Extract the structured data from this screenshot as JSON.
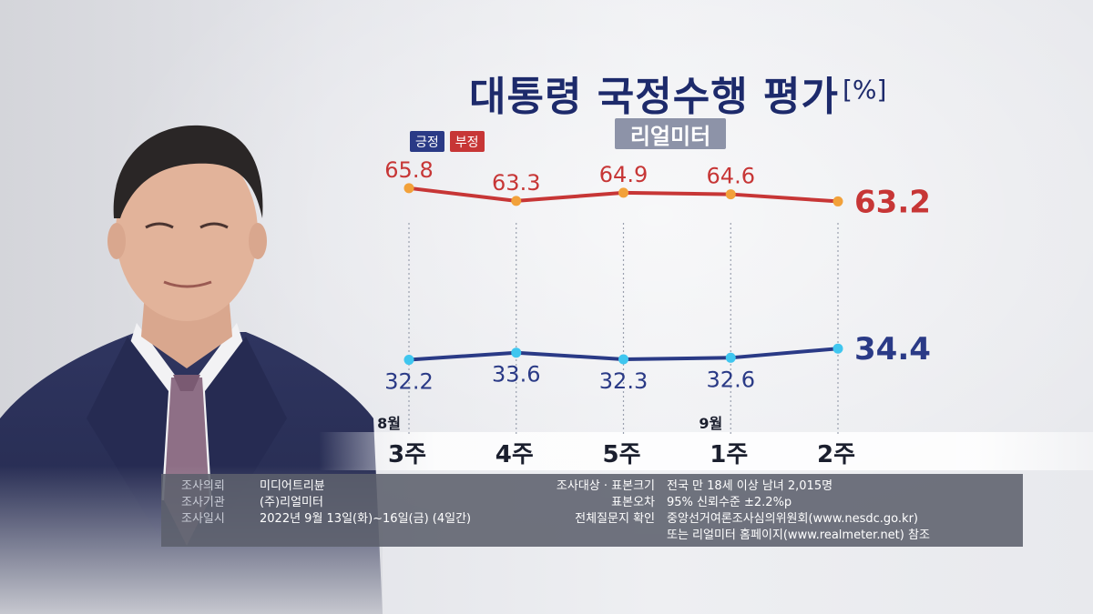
{
  "title": "대통령 국정수행 평가",
  "unit": "[%]",
  "source": "리얼미터",
  "legend": {
    "positive": "긍정",
    "negative": "부정"
  },
  "colors": {
    "positive": "#2a3a86",
    "negative": "#c73636",
    "positive_marker": "#3fc6ef",
    "negative_marker": "#f2a13a"
  },
  "chart_data": {
    "type": "line",
    "categories": [
      "3주",
      "4주",
      "5주",
      "1주",
      "2주"
    ],
    "month_labels": [
      "8월",
      "",
      "",
      "9월",
      ""
    ],
    "series": [
      {
        "name": "부정",
        "values": [
          65.8,
          63.3,
          64.9,
          64.6,
          63.2
        ]
      },
      {
        "name": "긍정",
        "values": [
          32.2,
          33.6,
          32.3,
          32.6,
          34.4
        ]
      }
    ],
    "title": "대통령 국정수행 평가",
    "ylim": [
      25,
      72
    ],
    "grid": "vertical-dotted",
    "legend_placement": "top-left"
  },
  "info": {
    "left": [
      {
        "key": "조사의뢰",
        "value": "미디어트리뷴"
      },
      {
        "key": "조사기관",
        "value": "(주)리얼미터"
      },
      {
        "key": "조사일시",
        "value": "2022년 9월 13일(화)~16일(금) (4일간)"
      }
    ],
    "right": [
      {
        "key": "조사대상 · 표본크기",
        "value": "전국 만 18세 이상 남녀 2,015명"
      },
      {
        "key": "표본오차",
        "value": "95% 신뢰수준 ±2.2%p"
      },
      {
        "key": "전체질문지 확인",
        "value": "중앙선거여론조사심의위원회(www.nesdc.go.kr)"
      },
      {
        "key": "",
        "value": "또는 리얼미터 홈페이지(www.realmeter.net) 참조"
      }
    ]
  }
}
